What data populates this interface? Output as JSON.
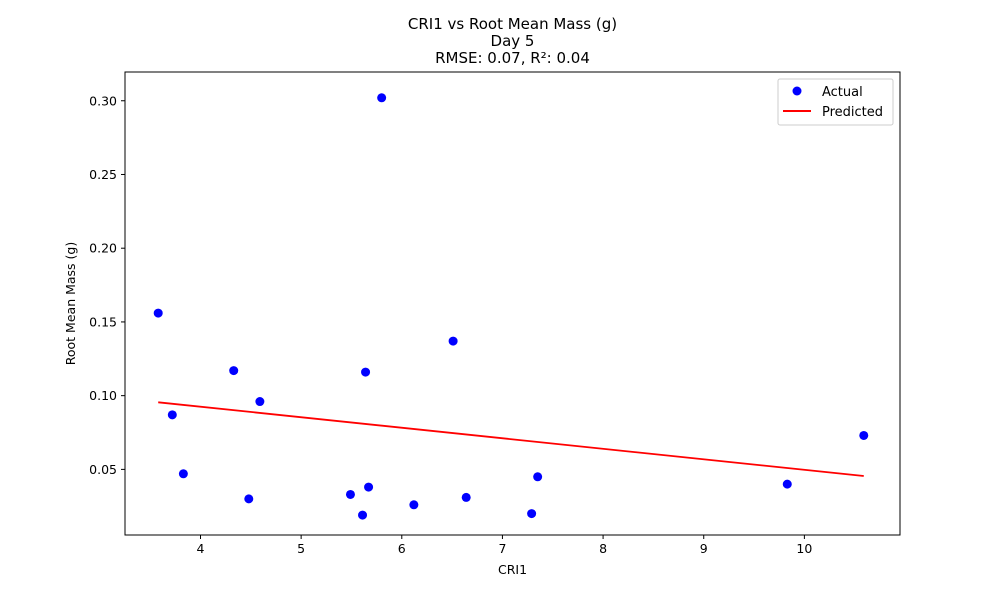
{
  "chart_data": {
    "type": "scatter",
    "title_lines": [
      "CRI1 vs Root Mean Mass (g)",
      "Day 5",
      "RMSE: 0.07, R²: 0.04"
    ],
    "xlabel": "CRI1",
    "ylabel": "Root Mean Mass (g)",
    "xlim": [
      3.25,
      10.95
    ],
    "ylim": [
      0.0055,
      0.3195
    ],
    "x_ticks": [
      4,
      5,
      6,
      7,
      8,
      9,
      10
    ],
    "y_ticks": [
      0.05,
      0.1,
      0.15,
      0.2,
      0.25,
      0.3
    ],
    "y_tick_labels": [
      "0.05",
      "0.10",
      "0.15",
      "0.20",
      "0.25",
      "0.30"
    ],
    "grid": false,
    "legend_position": "top-right",
    "series": [
      {
        "name": "Actual",
        "kind": "scatter",
        "color": "#0000ff",
        "points": [
          [
            3.58,
            0.156
          ],
          [
            3.72,
            0.087
          ],
          [
            3.83,
            0.047
          ],
          [
            4.33,
            0.117
          ],
          [
            4.48,
            0.03
          ],
          [
            4.59,
            0.096
          ],
          [
            5.49,
            0.033
          ],
          [
            5.61,
            0.019
          ],
          [
            5.64,
            0.116
          ],
          [
            5.67,
            0.038
          ],
          [
            5.8,
            0.302
          ],
          [
            6.12,
            0.026
          ],
          [
            6.51,
            0.137
          ],
          [
            6.64,
            0.031
          ],
          [
            7.29,
            0.02
          ],
          [
            7.35,
            0.045
          ],
          [
            9.83,
            0.04
          ],
          [
            10.59,
            0.073
          ]
        ]
      },
      {
        "name": "Predicted",
        "kind": "line",
        "color": "#ff0000",
        "points": [
          [
            3.58,
            0.0955
          ],
          [
            10.59,
            0.0455
          ]
        ]
      }
    ]
  }
}
